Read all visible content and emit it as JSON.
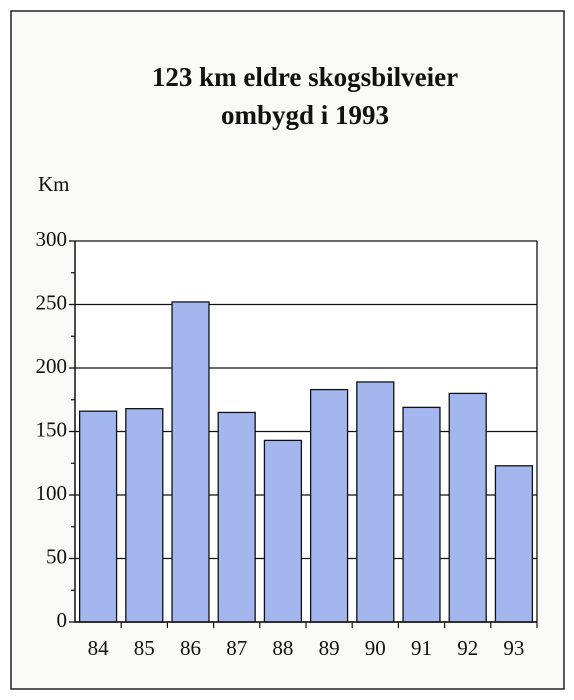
{
  "chart_data": {
    "type": "bar",
    "title": [
      "123 km eldre skogsbilveier",
      "ombygd i 1993"
    ],
    "y_label": "Km",
    "categories": [
      "84",
      "85",
      "86",
      "87",
      "88",
      "89",
      "90",
      "91",
      "92",
      "93"
    ],
    "values": [
      166,
      168,
      252,
      165,
      143,
      183,
      189,
      169,
      180,
      123
    ],
    "color": "#a3b6ee",
    "ylim": [
      0,
      300
    ],
    "yticks": [
      0,
      50,
      100,
      150,
      200,
      250,
      300
    ],
    "yminor_ticks": [
      25,
      75,
      125,
      175,
      225,
      275
    ],
    "grid": true
  }
}
